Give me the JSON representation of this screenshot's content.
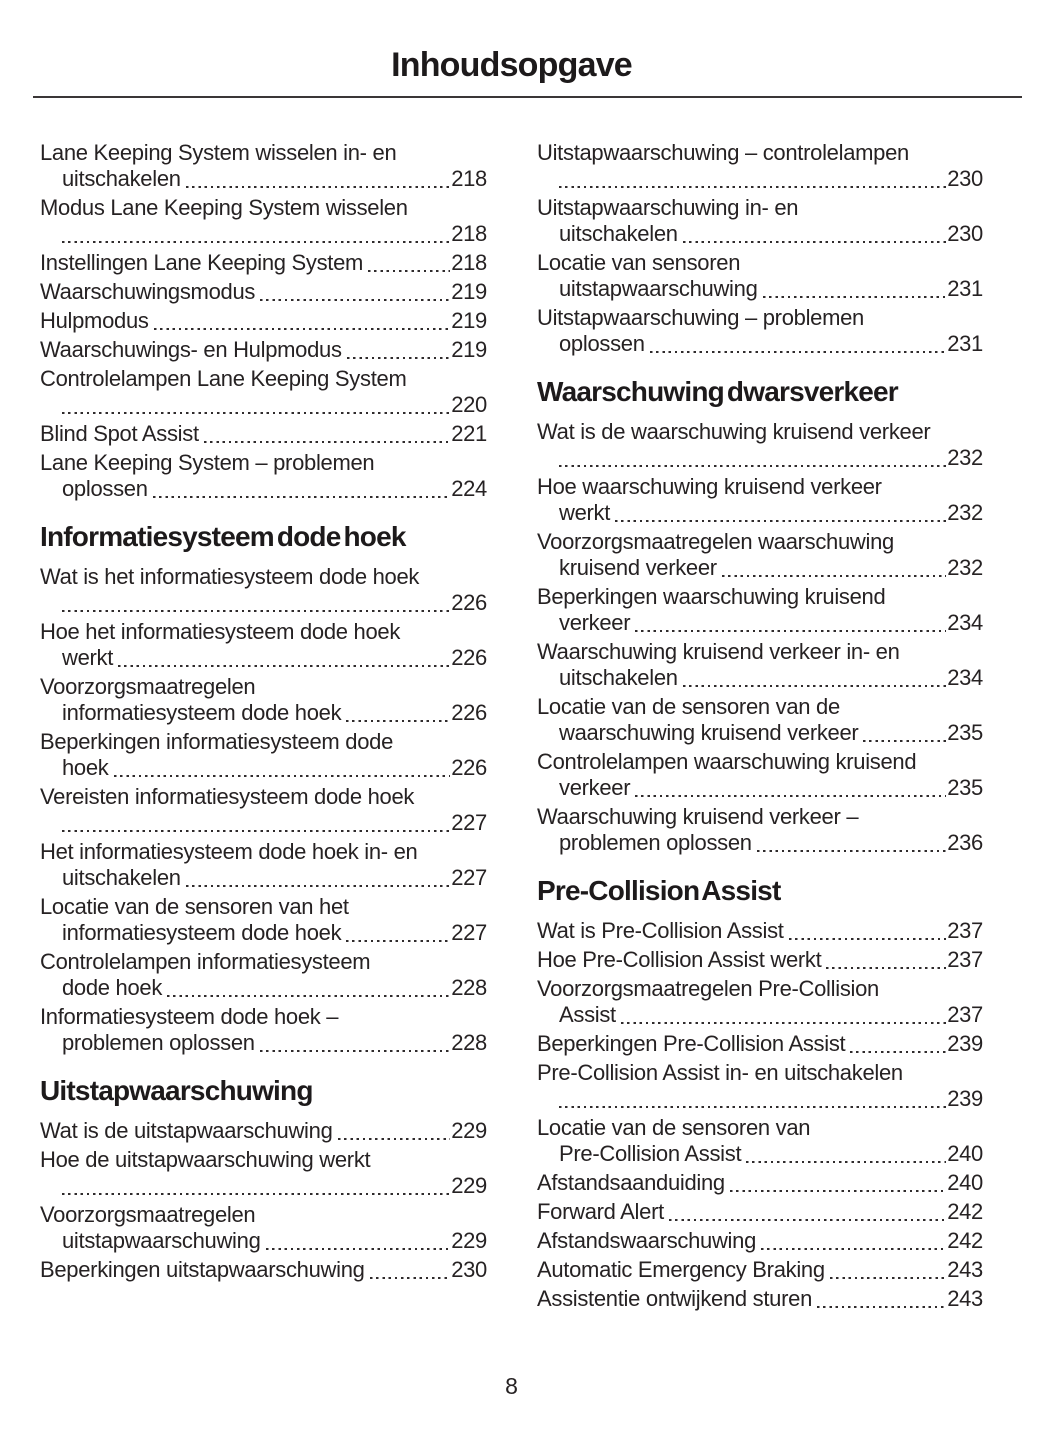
{
  "page_title": "Inhoudsopgave",
  "footer": {
    "page_number": "8"
  },
  "columns": [
    {
      "blocks": [
        {
          "type": "entries",
          "items": [
            {
              "lines": [
                "Lane Keeping System wisselen in- en",
                "uitschakelen"
              ],
              "page": "218"
            },
            {
              "lines": [
                "Modus Lane Keeping System wisselen",
                ""
              ],
              "page": "218"
            },
            {
              "lines": [
                "Instellingen Lane Keeping System"
              ],
              "page": "218"
            },
            {
              "lines": [
                "Waarschuwingsmodus"
              ],
              "page": "219"
            },
            {
              "lines": [
                "Hulpmodus"
              ],
              "page": "219"
            },
            {
              "lines": [
                "Waarschuwings- en Hulpmodus"
              ],
              "page": "219"
            },
            {
              "lines": [
                "Controlelampen Lane Keeping System",
                ""
              ],
              "page": "220"
            },
            {
              "lines": [
                "Blind Spot Assist"
              ],
              "page": "221"
            },
            {
              "lines": [
                "Lane Keeping System – problemen",
                "oplossen"
              ],
              "page": "224"
            }
          ]
        },
        {
          "type": "header",
          "label": "Informatiesysteem dode hoek"
        },
        {
          "type": "entries",
          "items": [
            {
              "lines": [
                "Wat is het informatiesysteem dode hoek",
                ""
              ],
              "page": "226"
            },
            {
              "lines": [
                "Hoe het informatiesysteem dode hoek",
                "werkt"
              ],
              "page": "226"
            },
            {
              "lines": [
                "Voorzorgsmaatregelen",
                "informatiesysteem dode hoek"
              ],
              "page": "226"
            },
            {
              "lines": [
                "Beperkingen informatiesysteem dode",
                "hoek"
              ],
              "page": "226"
            },
            {
              "lines": [
                "Vereisten informatiesysteem dode hoek",
                ""
              ],
              "page": "227"
            },
            {
              "lines": [
                "Het informatiesysteem dode hoek in- en",
                "uitschakelen"
              ],
              "page": "227"
            },
            {
              "lines": [
                "Locatie van de sensoren van het",
                "informatiesysteem dode hoek"
              ],
              "page": "227"
            },
            {
              "lines": [
                "Controlelampen informatiesysteem",
                "dode hoek"
              ],
              "page": "228"
            },
            {
              "lines": [
                "Informatiesysteem dode hoek –",
                "problemen oplossen"
              ],
              "page": "228"
            }
          ]
        },
        {
          "type": "header",
          "label": "Uitstapwaarschuwing"
        },
        {
          "type": "entries",
          "items": [
            {
              "lines": [
                "Wat is de uitstapwaarschuwing"
              ],
              "page": "229"
            },
            {
              "lines": [
                "Hoe de uitstapwaarschuwing werkt",
                ""
              ],
              "page": "229"
            },
            {
              "lines": [
                "Voorzorgsmaatregelen",
                "uitstapwaarschuwing"
              ],
              "page": "229"
            },
            {
              "lines": [
                "Beperkingen uitstapwaarschuwing"
              ],
              "page": "230"
            }
          ]
        }
      ]
    },
    {
      "blocks": [
        {
          "type": "entries",
          "items": [
            {
              "lines": [
                "Uitstapwaarschuwing – controlelampen",
                ""
              ],
              "page": "230"
            },
            {
              "lines": [
                "Uitstapwaarschuwing in- en",
                "uitschakelen"
              ],
              "page": "230"
            },
            {
              "lines": [
                "Locatie van sensoren",
                "uitstapwaarschuwing"
              ],
              "page": "231"
            },
            {
              "lines": [
                "Uitstapwaarschuwing – problemen",
                "oplossen"
              ],
              "page": "231"
            }
          ]
        },
        {
          "type": "header",
          "label": "Waarschuwing dwarsverkeer"
        },
        {
          "type": "entries",
          "items": [
            {
              "lines": [
                "Wat is de waarschuwing kruisend verkeer",
                ""
              ],
              "page": "232"
            },
            {
              "lines": [
                "Hoe waarschuwing kruisend verkeer",
                "werkt"
              ],
              "page": "232"
            },
            {
              "lines": [
                "Voorzorgsmaatregelen waarschuwing",
                "kruisend verkeer"
              ],
              "page": "232"
            },
            {
              "lines": [
                "Beperkingen waarschuwing kruisend",
                "verkeer"
              ],
              "page": "234"
            },
            {
              "lines": [
                "Waarschuwing kruisend verkeer in- en",
                "uitschakelen"
              ],
              "page": "234"
            },
            {
              "lines": [
                "Locatie van de sensoren van de",
                "waarschuwing kruisend verkeer"
              ],
              "page": "235"
            },
            {
              "lines": [
                "Controlelampen waarschuwing kruisend",
                "verkeer"
              ],
              "page": "235"
            },
            {
              "lines": [
                "Waarschuwing kruisend verkeer –",
                "problemen oplossen"
              ],
              "page": "236"
            }
          ]
        },
        {
          "type": "header",
          "label": "Pre-Collision Assist"
        },
        {
          "type": "entries",
          "items": [
            {
              "lines": [
                "Wat is Pre-Collision Assist"
              ],
              "page": "237"
            },
            {
              "lines": [
                "Hoe Pre-Collision Assist werkt"
              ],
              "page": "237"
            },
            {
              "lines": [
                "Voorzorgsmaatregelen Pre-Collision",
                "Assist"
              ],
              "page": "237"
            },
            {
              "lines": [
                "Beperkingen Pre-Collision Assist"
              ],
              "page": "239"
            },
            {
              "lines": [
                "Pre-Collision Assist in- en uitschakelen",
                ""
              ],
              "page": "239"
            },
            {
              "lines": [
                "Locatie van de sensoren van",
                "Pre-Collision Assist"
              ],
              "page": "240"
            },
            {
              "lines": [
                "Afstandsaanduiding"
              ],
              "page": "240"
            },
            {
              "lines": [
                "Forward Alert"
              ],
              "page": "242"
            },
            {
              "lines": [
                "Afstandswaarschuwing"
              ],
              "page": "242"
            },
            {
              "lines": [
                "Automatic Emergency Braking"
              ],
              "page": "243"
            },
            {
              "lines": [
                "Assistentie ontwijkend sturen"
              ],
              "page": "243"
            }
          ]
        }
      ]
    }
  ]
}
